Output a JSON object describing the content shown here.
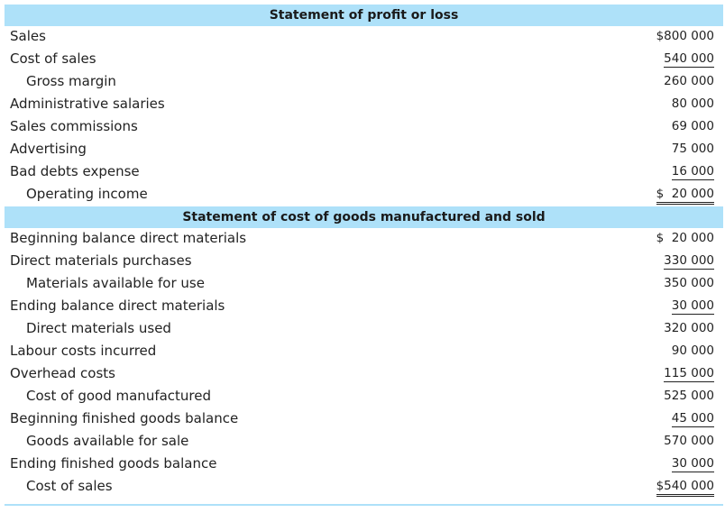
{
  "profit_loss": {
    "title": "Statement of profit or loss",
    "rows": [
      {
        "label": "Sales",
        "amount": "$800 000",
        "indent": false,
        "rule": "none"
      },
      {
        "label": "Cost of sales",
        "amount": "540 000",
        "indent": false,
        "rule": "single"
      },
      {
        "label": "Gross margin",
        "amount": "260 000",
        "indent": true,
        "rule": "none"
      },
      {
        "label": "Administrative salaries",
        "amount": "80 000",
        "indent": false,
        "rule": "none"
      },
      {
        "label": "Sales commissions",
        "amount": "69 000",
        "indent": false,
        "rule": "none"
      },
      {
        "label": "Advertising",
        "amount": "75 000",
        "indent": false,
        "rule": "none"
      },
      {
        "label": "Bad debts expense",
        "amount": "16 000",
        "indent": false,
        "rule": "single"
      },
      {
        "label": "Operating income",
        "amount": "$  20 000",
        "indent": true,
        "rule": "double"
      }
    ]
  },
  "cogs": {
    "title": "Statement of cost of goods manufactured and sold",
    "rows": [
      {
        "label": "Beginning balance direct materials",
        "amount": "$  20 000",
        "indent": false,
        "rule": "none"
      },
      {
        "label": "Direct materials purchases",
        "amount": "330 000",
        "indent": false,
        "rule": "single"
      },
      {
        "label": "Materials available for use",
        "amount": "350 000",
        "indent": true,
        "rule": "none"
      },
      {
        "label": "Ending balance direct materials",
        "amount": "30 000",
        "indent": false,
        "rule": "single"
      },
      {
        "label": "Direct materials used",
        "amount": "320 000",
        "indent": true,
        "rule": "none"
      },
      {
        "label": "Labour costs incurred",
        "amount": "90 000",
        "indent": false,
        "rule": "none"
      },
      {
        "label": "Overhead costs",
        "amount": "115 000",
        "indent": false,
        "rule": "single"
      },
      {
        "label": "Cost of good manufactured",
        "amount": "525 000",
        "indent": true,
        "rule": "none"
      },
      {
        "label": "Beginning finished goods balance",
        "amount": "45 000",
        "indent": false,
        "rule": "single"
      },
      {
        "label": "Goods available for sale",
        "amount": "570 000",
        "indent": true,
        "rule": "none"
      },
      {
        "label": "Ending finished goods balance",
        "amount": "30 000",
        "indent": false,
        "rule": "single"
      },
      {
        "label": "Cost of sales",
        "amount": "$540 000",
        "indent": true,
        "rule": "double"
      }
    ]
  }
}
